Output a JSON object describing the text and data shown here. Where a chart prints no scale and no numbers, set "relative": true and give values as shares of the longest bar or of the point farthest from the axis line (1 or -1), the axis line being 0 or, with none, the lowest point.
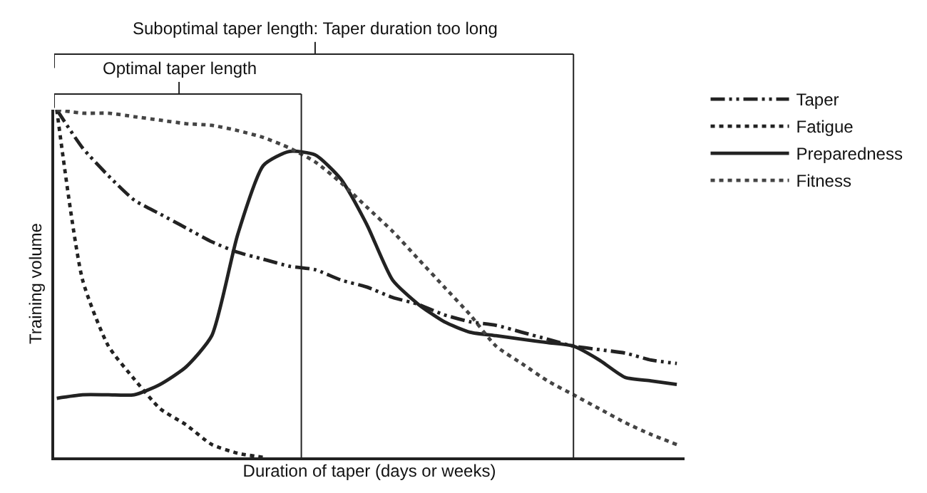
{
  "chart_data": {
    "type": "line",
    "relative": true,
    "xlabel": "Duration of taper (days or weeks)",
    "ylabel": "Training volume",
    "categories": [
      null,
      null,
      null,
      null,
      null,
      null,
      null,
      null,
      null,
      null,
      null,
      null,
      null,
      null,
      null,
      null,
      null,
      null,
      null,
      null,
      null,
      null,
      null,
      null,
      null
    ],
    "series": [
      {
        "name": "Taper",
        "color": "#222222",
        "line_style": "dashdot",
        "values": [
          1.0,
          0.89,
          0.81,
          0.74,
          0.7,
          0.66,
          0.62,
          0.59,
          0.57,
          0.55,
          0.54,
          0.51,
          0.49,
          0.46,
          0.44,
          0.41,
          0.39,
          0.38,
          0.36,
          0.34,
          0.32,
          0.31,
          0.3,
          0.28,
          0.27
        ]
      },
      {
        "name": "Fatigue",
        "color": "#222222",
        "line_style": "dotted",
        "values": [
          1.0,
          0.51,
          0.32,
          0.225,
          0.14,
          0.094,
          0.037,
          0.012,
          0.0,
          null,
          null,
          null,
          null,
          null,
          null,
          null,
          null,
          null,
          null,
          null,
          null,
          null,
          null,
          null,
          null
        ]
      },
      {
        "name": "Preparedness",
        "color": "#222222",
        "line_style": "solid",
        "values": [
          0.17,
          0.18,
          0.18,
          0.18,
          0.21,
          0.26,
          0.35,
          0.64,
          0.84,
          0.88,
          0.87,
          0.8,
          0.67,
          0.51,
          0.44,
          0.39,
          0.36,
          0.35,
          0.34,
          0.33,
          0.32,
          0.28,
          0.23,
          0.22,
          0.21
        ]
      },
      {
        "name": "Fitness",
        "color": "#444444",
        "line_style": "dotted",
        "values": [
          1.0,
          0.99,
          0.99,
          0.98,
          0.97,
          0.96,
          0.955,
          0.94,
          0.92,
          0.89,
          0.85,
          0.79,
          0.72,
          0.65,
          0.57,
          0.49,
          0.41,
          0.32,
          0.27,
          0.22,
          0.18,
          0.14,
          0.1,
          0.066,
          0.037
        ]
      }
    ],
    "annotations": [
      "Optimal taper length",
      "Suboptimal taper length: Taper duration too long"
    ],
    "legend": "top right",
    "marker": "none"
  }
}
